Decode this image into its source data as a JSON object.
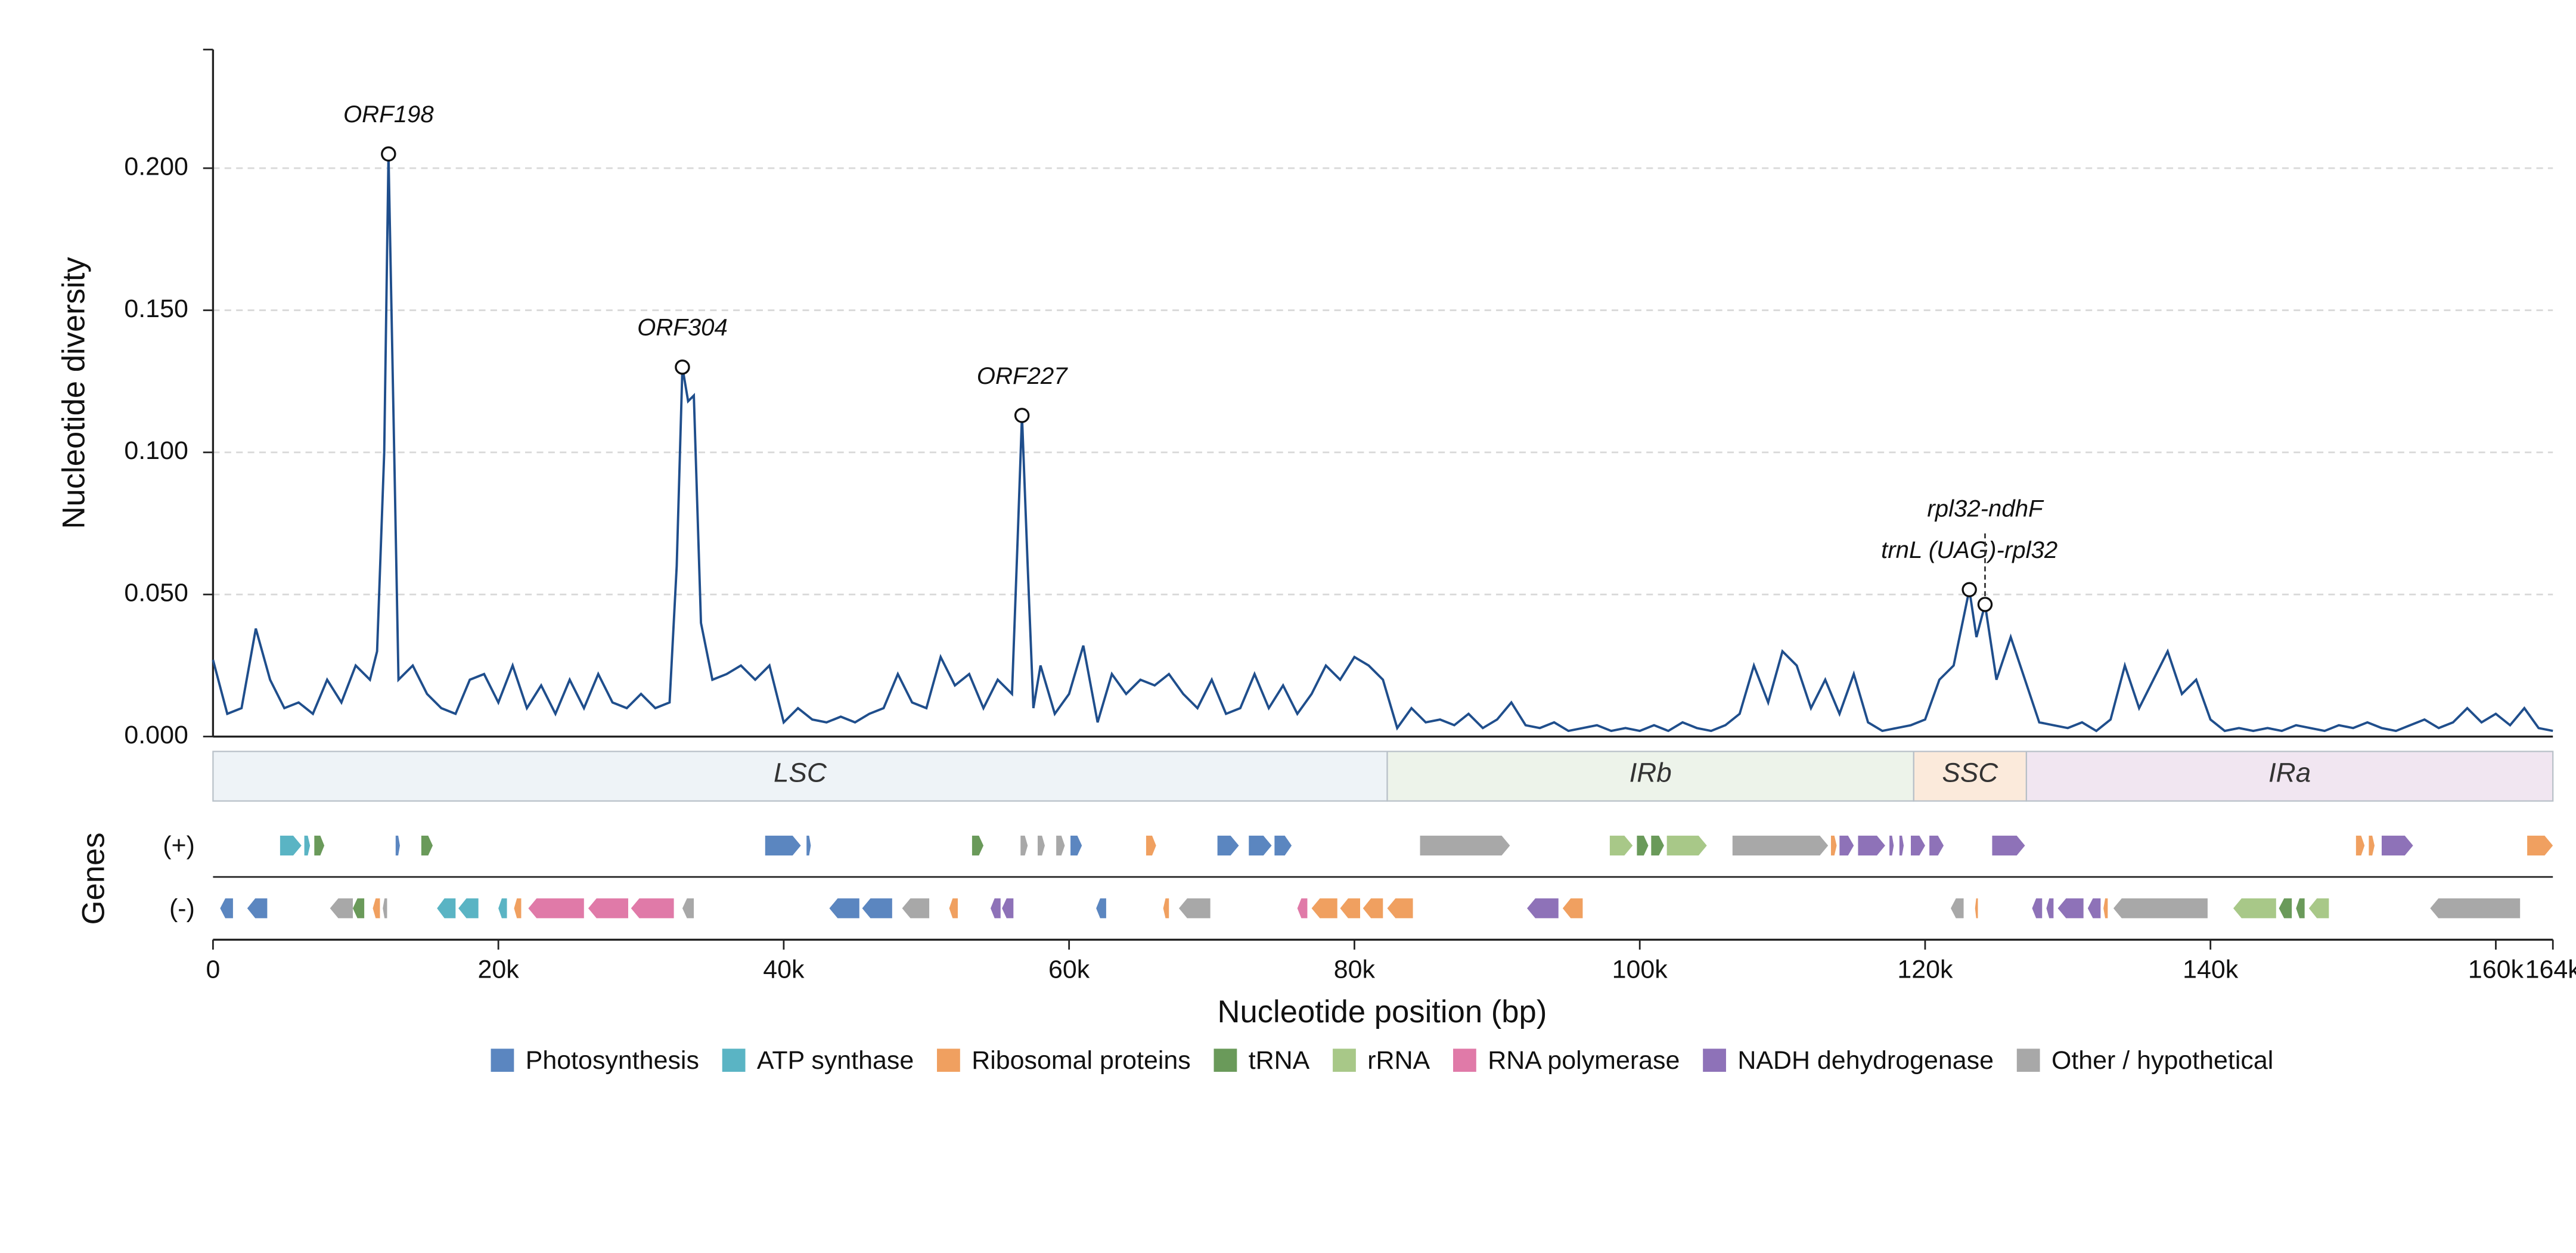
{
  "chart_data": {
    "type": "line",
    "ylabel": "Nucleotide diversity",
    "xlabel": "Nucleotide position (bp)",
    "color": "#1f4e8c",
    "xlim": [
      0,
      164000
    ],
    "ylim": [
      0,
      0.24
    ],
    "xticks": [
      0,
      {
        "value": 20000,
        "label": "20k"
      },
      {
        "value": 40000,
        "label": "40k"
      },
      {
        "value": 60000,
        "label": "60k"
      },
      {
        "value": 80000,
        "label": "80k"
      },
      {
        "value": 100000,
        "label": "100k"
      },
      {
        "value": 120000,
        "label": "120k"
      },
      {
        "value": 140000,
        "label": "140k"
      },
      {
        "value": 160000,
        "label": "160k"
      },
      {
        "value": 164000,
        "label": "164k"
      }
    ],
    "yticks": [
      {
        "value": 0,
        "label": "0.000"
      },
      {
        "value": 0.05,
        "label": "0.050"
      },
      {
        "value": 0.1,
        "label": "0.100"
      },
      {
        "value": 0.15,
        "label": "0.150"
      },
      {
        "value": 0.2,
        "label": "0.200"
      }
    ],
    "grid": true,
    "x": [
      0,
      1000,
      2000,
      3000,
      4000,
      5000,
      6000,
      7000,
      8000,
      9000,
      10000,
      11000,
      11500,
      12000,
      12300,
      12700,
      13000,
      14000,
      15000,
      16000,
      17000,
      18000,
      19000,
      20000,
      21000,
      22000,
      23000,
      24000,
      25000,
      26000,
      27000,
      28000,
      29000,
      30000,
      31000,
      32000,
      32500,
      32900,
      33300,
      33700,
      34200,
      35000,
      36000,
      37000,
      38000,
      39000,
      40000,
      41000,
      42000,
      43000,
      44000,
      45000,
      46000,
      47000,
      48000,
      49000,
      50000,
      51000,
      52000,
      53000,
      54000,
      55000,
      56000,
      56400,
      56700,
      57100,
      57500,
      58000,
      59000,
      60000,
      61000,
      62000,
      63000,
      64000,
      65000,
      66000,
      67000,
      68000,
      69000,
      70000,
      71000,
      72000,
      73000,
      74000,
      75000,
      76000,
      77000,
      78000,
      79000,
      80000,
      81000,
      82000,
      83000,
      84000,
      85000,
      86000,
      87000,
      88000,
      89000,
      90000,
      91000,
      92000,
      93000,
      94000,
      95000,
      96000,
      97000,
      98000,
      99000,
      100000,
      101000,
      102000,
      103000,
      104000,
      105000,
      106000,
      107000,
      108000,
      109000,
      110000,
      111000,
      112000,
      113000,
      114000,
      115000,
      116000,
      117000,
      118000,
      119000,
      120000,
      121000,
      122000,
      123100,
      123600,
      124200,
      125000,
      126000,
      127000,
      128000,
      129000,
      130000,
      131000,
      132000,
      133000,
      134000,
      135000,
      136000,
      137000,
      138000,
      139000,
      140000,
      141000,
      142000,
      143000,
      144000,
      145000,
      146000,
      147000,
      148000,
      149000,
      150000,
      151000,
      152000,
      153000,
      154000,
      155000,
      156000,
      157000,
      158000,
      159000,
      160000,
      161000,
      162000,
      163000,
      164000
    ],
    "values": [
      0.027,
      0.008,
      0.01,
      0.038,
      0.02,
      0.01,
      0.012,
      0.008,
      0.02,
      0.012,
      0.025,
      0.02,
      0.03,
      0.1,
      0.205,
      0.1,
      0.02,
      0.025,
      0.015,
      0.01,
      0.008,
      0.02,
      0.022,
      0.012,
      0.025,
      0.01,
      0.018,
      0.008,
      0.02,
      0.01,
      0.022,
      0.012,
      0.01,
      0.015,
      0.01,
      0.012,
      0.06,
      0.13,
      0.118,
      0.12,
      0.04,
      0.02,
      0.022,
      0.025,
      0.02,
      0.025,
      0.005,
      0.01,
      0.006,
      0.005,
      0.007,
      0.005,
      0.008,
      0.01,
      0.022,
      0.012,
      0.01,
      0.028,
      0.018,
      0.022,
      0.01,
      0.02,
      0.015,
      0.07,
      0.113,
      0.06,
      0.01,
      0.025,
      0.008,
      0.015,
      0.032,
      0.005,
      0.022,
      0.015,
      0.02,
      0.018,
      0.022,
      0.015,
      0.01,
      0.02,
      0.008,
      0.01,
      0.022,
      0.01,
      0.018,
      0.008,
      0.015,
      0.025,
      0.02,
      0.028,
      0.025,
      0.02,
      0.003,
      0.01,
      0.005,
      0.006,
      0.004,
      0.008,
      0.003,
      0.006,
      0.012,
      0.004,
      0.003,
      0.005,
      0.002,
      0.003,
      0.004,
      0.002,
      0.003,
      0.002,
      0.004,
      0.002,
      0.005,
      0.003,
      0.002,
      0.004,
      0.008,
      0.025,
      0.012,
      0.03,
      0.025,
      0.01,
      0.02,
      0.008,
      0.022,
      0.005,
      0.002,
      0.003,
      0.004,
      0.006,
      0.02,
      0.025,
      0.0517,
      0.035,
      0.0465,
      0.02,
      0.035,
      0.02,
      0.005,
      0.004,
      0.003,
      0.005,
      0.002,
      0.006,
      0.025,
      0.01,
      0.02,
      0.03,
      0.015,
      0.02,
      0.006,
      0.002,
      0.003,
      0.002,
      0.003,
      0.002,
      0.004,
      0.003,
      0.002,
      0.004,
      0.003,
      0.005,
      0.003,
      0.002,
      0.004,
      0.006,
      0.003,
      0.005,
      0.01,
      0.005,
      0.008,
      0.004,
      0.01,
      0.003,
      0.002
    ],
    "annotations": [
      {
        "text": "ORF198",
        "x": 12300,
        "y": 0.205
      },
      {
        "text": "ORF304",
        "x": 32900,
        "y": 0.13
      },
      {
        "text": "ORF227",
        "x": 56700,
        "y": 0.113
      },
      {
        "text": "trnL (UAG)-rpl32",
        "x": 123100,
        "y": 0.0517
      },
      {
        "text": "rpl32-ndhF",
        "x": 124200,
        "y": 0.0465,
        "leader": true
      }
    ],
    "regions": [
      {
        "name": "LSC",
        "start": 0,
        "end": 82300,
        "color": "#eef3f7"
      },
      {
        "name": "IRb",
        "start": 82300,
        "end": 119200,
        "color": "#edf3ea"
      },
      {
        "name": "SSC",
        "start": 119200,
        "end": 127100,
        "color": "#fbeadb"
      },
      {
        "name": "IRa",
        "start": 127100,
        "end": 164000,
        "color": "#f1e6f1"
      }
    ],
    "legend": [
      {
        "name": "Photosynthesis",
        "color": "#5b86c0"
      },
      {
        "name": "ATP synthase",
        "color": "#5ab4c4"
      },
      {
        "name": "Ribosomal proteins",
        "color": "#f0a060"
      },
      {
        "name": "tRNA",
        "color": "#6a9a5a"
      },
      {
        "name": "rRNA",
        "color": "#a8c888"
      },
      {
        "name": "RNA polymerase",
        "color": "#e07aa8"
      },
      {
        "name": "NADH dehydrogenase",
        "color": "#8e72b8"
      },
      {
        "name": "Other / hypothetical",
        "color": "#a8a8a8"
      }
    ],
    "genes": {
      "label": "Genes",
      "plus_label": "(+)",
      "minus_label": "(-)",
      "plus": [
        [
          4700,
          6200,
          1
        ],
        [
          6400,
          6800,
          1
        ],
        [
          7100,
          7800,
          3
        ],
        [
          12800,
          13100,
          0
        ],
        [
          14600,
          15400,
          3
        ],
        [
          38700,
          41200,
          0
        ],
        [
          41600,
          41900,
          0
        ],
        [
          53200,
          54000,
          3
        ],
        [
          56600,
          57100,
          7
        ],
        [
          57800,
          58300,
          7
        ],
        [
          59100,
          59700,
          7
        ],
        [
          60100,
          60900,
          0
        ],
        [
          65400,
          66100,
          2
        ],
        [
          70400,
          71900,
          0
        ],
        [
          72600,
          74200,
          0
        ],
        [
          74400,
          75600,
          0
        ],
        [
          84600,
          90900,
          7
        ],
        [
          97900,
          99500,
          4
        ],
        [
          99800,
          100600,
          3
        ],
        [
          100800,
          101700,
          3
        ],
        [
          101900,
          104700,
          4
        ],
        [
          106500,
          113200,
          7
        ],
        [
          113400,
          113800,
          2
        ],
        [
          114000,
          115000,
          6
        ],
        [
          115300,
          117200,
          6
        ],
        [
          117500,
          117800,
          6
        ],
        [
          118200,
          118500,
          6
        ],
        [
          119000,
          120000,
          6
        ],
        [
          120300,
          121300,
          6
        ],
        [
          124700,
          127000,
          6
        ],
        [
          150200,
          150800,
          2
        ],
        [
          151100,
          151500,
          2
        ],
        [
          152000,
          154200,
          6
        ],
        [
          162200,
          164000,
          2
        ]
      ],
      "minus": [
        [
          500,
          1400,
          0
        ],
        [
          2400,
          3800,
          0
        ],
        [
          8200,
          9800,
          7
        ],
        [
          9800,
          10600,
          3
        ],
        [
          11200,
          11700,
          2
        ],
        [
          11900,
          12200,
          7
        ],
        [
          15700,
          17000,
          1
        ],
        [
          17200,
          18600,
          1
        ],
        [
          20000,
          20600,
          1
        ],
        [
          21100,
          21600,
          2
        ],
        [
          22100,
          26000,
          5
        ],
        [
          26300,
          29100,
          5
        ],
        [
          29300,
          32300,
          5
        ],
        [
          32900,
          33700,
          7
        ],
        [
          43200,
          45300,
          0
        ],
        [
          45500,
          47600,
          0
        ],
        [
          48300,
          50200,
          7
        ],
        [
          51600,
          52200,
          2
        ],
        [
          54500,
          55200,
          6
        ],
        [
          55300,
          56100,
          6
        ],
        [
          61900,
          62600,
          0
        ],
        [
          66600,
          67000,
          2
        ],
        [
          67700,
          69900,
          7
        ],
        [
          76000,
          76700,
          5
        ],
        [
          77000,
          78800,
          2
        ],
        [
          79000,
          80400,
          2
        ],
        [
          80600,
          82000,
          2
        ],
        [
          82300,
          84100,
          2
        ],
        [
          92100,
          94300,
          6
        ],
        [
          94600,
          96000,
          2
        ],
        [
          121800,
          122700,
          7
        ],
        [
          123500,
          123700,
          2
        ],
        [
          127500,
          128200,
          6
        ],
        [
          128500,
          129000,
          6
        ],
        [
          129300,
          131100,
          6
        ],
        [
          131400,
          132300,
          6
        ],
        [
          132500,
          132800,
          2
        ],
        [
          133200,
          139800,
          7
        ],
        [
          141600,
          144600,
          4
        ],
        [
          144800,
          145700,
          3
        ],
        [
          146000,
          146600,
          3
        ],
        [
          146900,
          148300,
          4
        ],
        [
          155400,
          161700,
          7
        ]
      ]
    }
  }
}
